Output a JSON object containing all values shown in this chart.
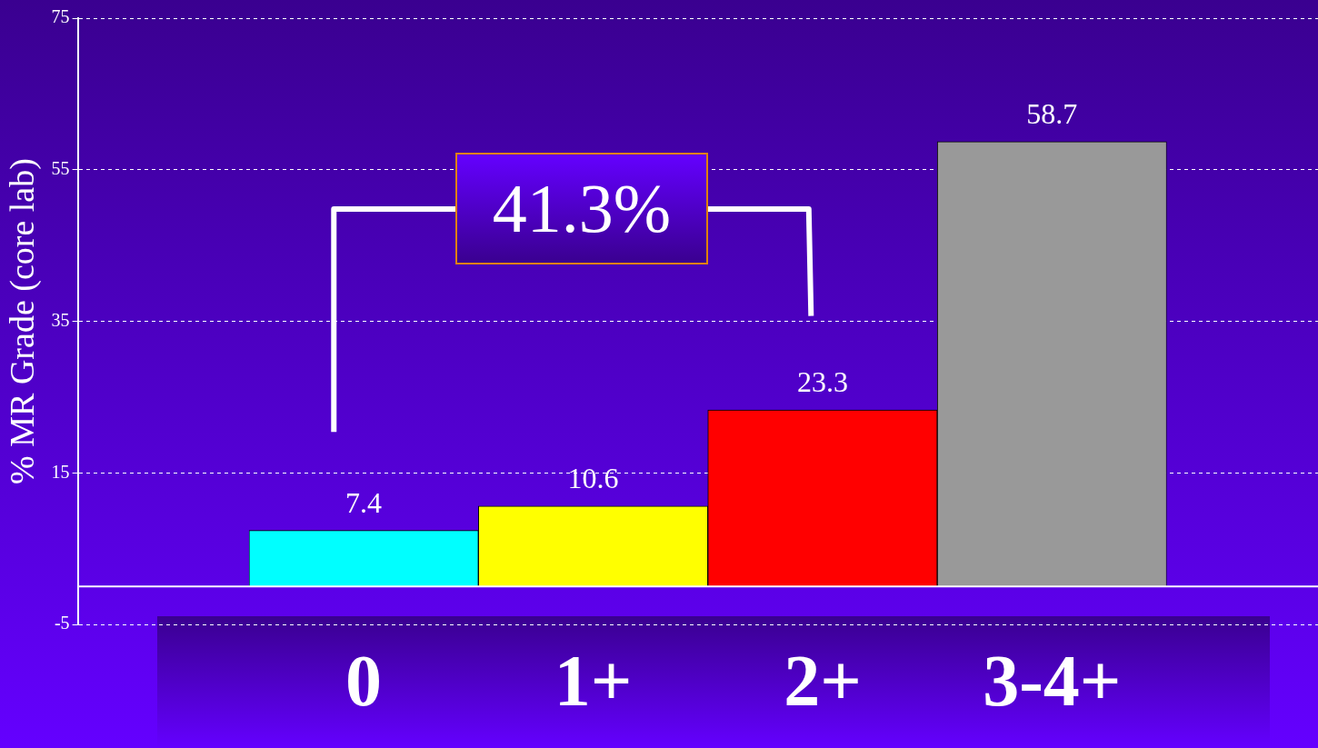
{
  "chart_data": {
    "type": "bar",
    "ylabel": "% MR Grade (core lab)",
    "categories": [
      "0",
      "1+",
      "2+",
      "3-4+"
    ],
    "values": [
      7.4,
      10.6,
      23.3,
      58.7
    ],
    "colors": [
      "#00ffff",
      "#ffff00",
      "#ff0000",
      "#999999"
    ],
    "ylim": [
      -5,
      75
    ],
    "yticks": [
      -5,
      15,
      35,
      55,
      75
    ],
    "grid": "y",
    "data_labels": true,
    "ref_lines": [
      {
        "axis": "y",
        "value": 0,
        "color": "#ffffff",
        "line_style": "solid"
      }
    ],
    "annotations": [
      "41.3%"
    ],
    "legend": false
  }
}
